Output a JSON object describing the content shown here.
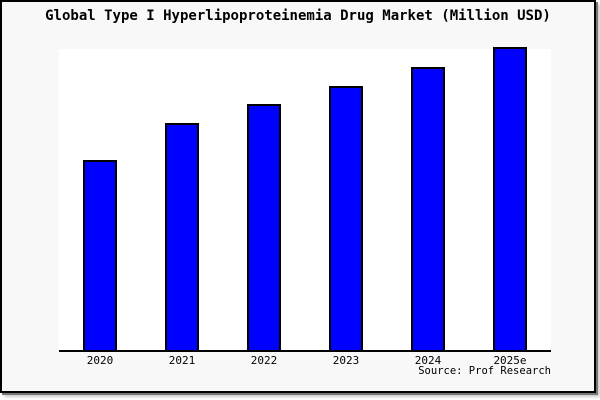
{
  "title": "Global Type I Hyperlipoproteinemia Drug Market (Million USD)",
  "source_label": "Source: Prof Research",
  "colors": {
    "bar": "#0000ff",
    "bar_border": "#000000",
    "canvas_background": "#f8f8f8",
    "plot_background": "#ffffff",
    "axis": "#000000",
    "text": "#000000"
  },
  "chart_data": {
    "type": "bar",
    "title": "Global Type I Hyperlipoproteinemia Drug Market (Million USD)",
    "categories": [
      "2020",
      "2021",
      "2022",
      "2023",
      "2024",
      "2025e"
    ],
    "values": [
      62.5,
      74.6,
      81.1,
      87.2,
      93.5,
      100
    ],
    "values_note": "relative heights, max bar = 100; no y-axis ticks shown in chart",
    "xlabel": "",
    "ylabel": "",
    "ylim": [
      0,
      100
    ],
    "grid": false,
    "legend": false,
    "y_axis_visible": false,
    "source": "Source: Prof Research"
  }
}
